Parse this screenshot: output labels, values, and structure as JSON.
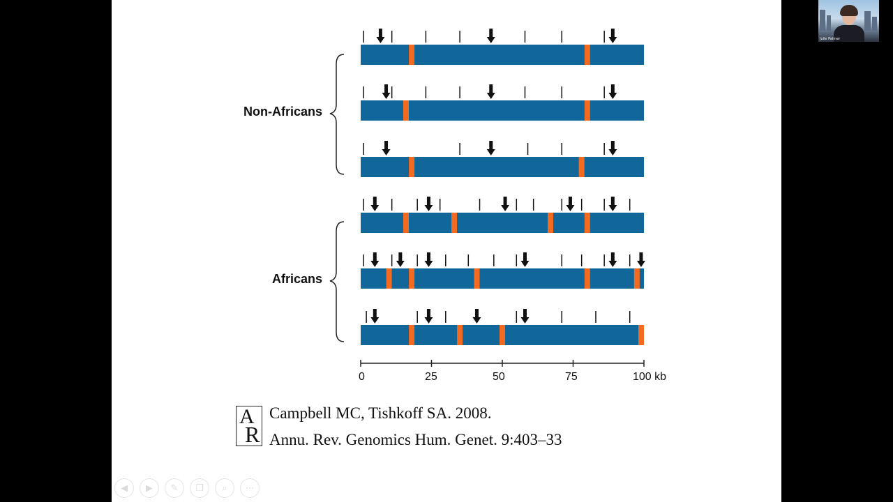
{
  "slide": {
    "groups": [
      {
        "label": "Non-Africans"
      },
      {
        "label": "Africans"
      }
    ],
    "axis": {
      "ticks": [
        "0",
        "25",
        "50",
        "75",
        "100 kb"
      ],
      "max_kb": 100
    },
    "chromosomes": [
      {
        "group": "Non-Africans",
        "orange_kb": [
          18,
          80
        ],
        "tick_kb": [
          1,
          11,
          23,
          35,
          58,
          71,
          86
        ],
        "arrow_kb": [
          7,
          46,
          89
        ]
      },
      {
        "group": "Non-Africans",
        "orange_kb": [
          16,
          80
        ],
        "tick_kb": [
          1,
          11,
          23,
          35,
          58,
          71,
          86
        ],
        "arrow_kb": [
          9,
          46,
          89
        ]
      },
      {
        "group": "Non-Africans",
        "orange_kb": [
          18,
          78
        ],
        "tick_kb": [
          1,
          35,
          59,
          71,
          86
        ],
        "arrow_kb": [
          9,
          46,
          89
        ]
      },
      {
        "group": "Africans",
        "orange_kb": [
          16,
          33,
          67,
          80
        ],
        "tick_kb": [
          1,
          11,
          20,
          28,
          42,
          55,
          61,
          71,
          78,
          86,
          95
        ],
        "arrow_kb": [
          5,
          24,
          51,
          74,
          89
        ]
      },
      {
        "group": "Africans",
        "orange_kb": [
          10,
          18,
          41,
          80,
          97.5
        ],
        "tick_kb": [
          1,
          11,
          20,
          30,
          38,
          47,
          55,
          71,
          78,
          86,
          95
        ],
        "arrow_kb": [
          5,
          14,
          24,
          58,
          89,
          99
        ]
      },
      {
        "group": "Africans",
        "orange_kb": [
          18,
          35,
          50,
          99.5
        ],
        "tick_kb": [
          2,
          20,
          30,
          55,
          71,
          83,
          95
        ],
        "arrow_kb": [
          5,
          24,
          41,
          58
        ]
      }
    ],
    "citation": {
      "logo_letters": "AR",
      "line1": "Campbell MC, Tishkoff SA. 2008.",
      "line2": "Annu. Rev. Genomics Hum. Genet. 9:403–33"
    },
    "colors": {
      "bar": "#12679a",
      "marker": "#f26b21",
      "arrow": "#111111"
    }
  },
  "toolbar": {
    "icons": [
      "previous-icon",
      "next-icon",
      "pen-icon",
      "slides-icon",
      "zoom-icon",
      "more-icon"
    ],
    "glyphs": [
      "◀",
      "▶",
      "✎",
      "❐",
      "⌕",
      "⋯"
    ]
  },
  "webcam": {
    "name": "Julie Palmer"
  }
}
